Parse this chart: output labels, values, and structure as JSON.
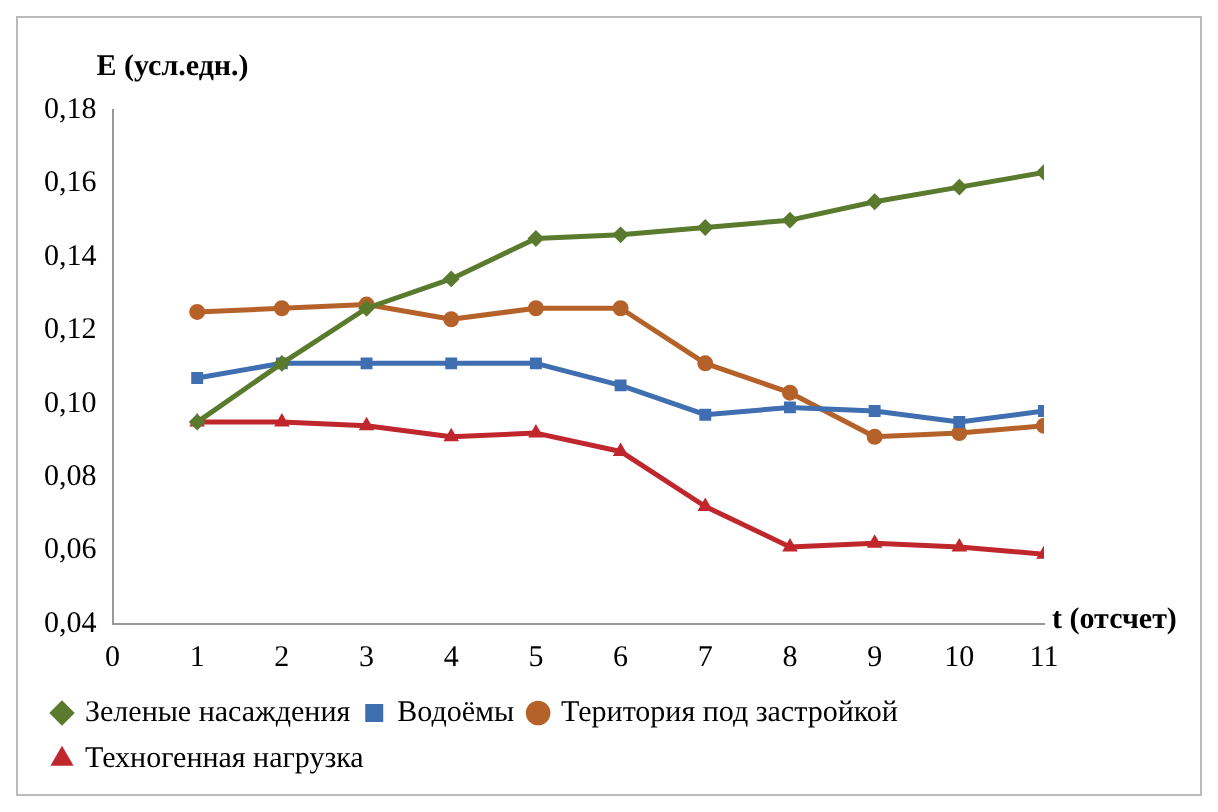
{
  "chart_data": {
    "type": "line",
    "xlabel": "t (отсчет)",
    "ylabel": "E (усл.едн.)",
    "x": [
      1,
      2,
      3,
      4,
      5,
      6,
      7,
      8,
      9,
      10,
      11
    ],
    "series": [
      {
        "name": "Зеленые насаждения",
        "color": "#5a7a2e",
        "marker": "diamond",
        "values": [
          0.095,
          0.111,
          0.126,
          0.134,
          0.145,
          0.146,
          0.148,
          0.15,
          0.155,
          0.159,
          0.163
        ]
      },
      {
        "name": "Водоёмы",
        "color": "#3f6fb0",
        "marker": "square",
        "values": [
          0.107,
          0.111,
          0.111,
          0.111,
          0.111,
          0.105,
          0.097,
          0.099,
          0.098,
          0.095,
          0.098
        ]
      },
      {
        "name": "Територия под застройкой",
        "color": "#b5622a",
        "marker": "circle",
        "values": [
          0.125,
          0.126,
          0.127,
          0.123,
          0.126,
          0.126,
          0.111,
          0.103,
          0.091,
          0.092,
          0.094
        ]
      },
      {
        "name": "Техногенная нагрузка",
        "color": "#c0272d",
        "marker": "triangle",
        "values": [
          0.095,
          0.095,
          0.094,
          0.091,
          0.092,
          0.087,
          0.072,
          0.061,
          0.062,
          0.061,
          0.059
        ]
      }
    ],
    "xlim": [
      0,
      11
    ],
    "xticks": [
      0,
      1,
      2,
      3,
      4,
      5,
      6,
      7,
      8,
      9,
      10,
      11
    ],
    "ylim": [
      0.04,
      0.18
    ],
    "yticks": [
      {
        "value": 0.04,
        "label": "0,04"
      },
      {
        "value": 0.06,
        "label": "0,06"
      },
      {
        "value": 0.08,
        "label": "0,08"
      },
      {
        "value": 0.1,
        "label": "0,10"
      },
      {
        "value": 0.12,
        "label": "0,12"
      },
      {
        "value": 0.14,
        "label": "0,14"
      },
      {
        "value": 0.16,
        "label": "0,16"
      },
      {
        "value": 0.18,
        "label": "0,18"
      }
    ],
    "grid": false,
    "legend": "bottom",
    "line_style": "solid"
  }
}
